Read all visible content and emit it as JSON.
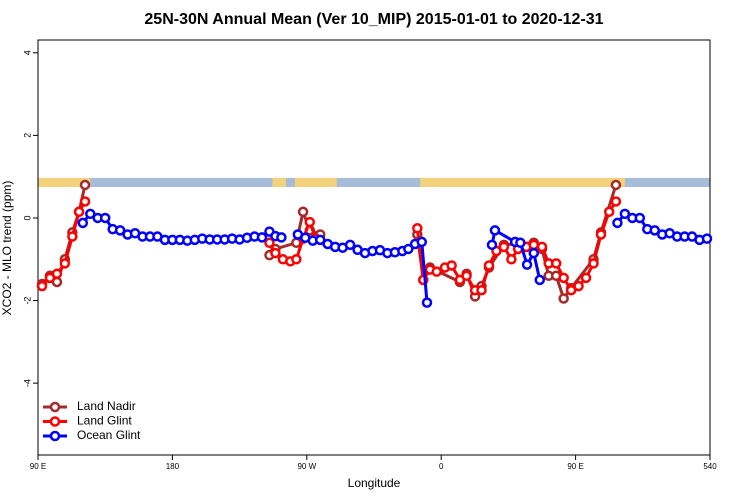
{
  "chart_data": {
    "type": "line",
    "title": "25N-30N Annual Mean (Ver 10_MIP)   2015-01-01 to 2020-12-31",
    "x_label": "Longitude",
    "y_label": "XCO2 - MLO trend (ppm)",
    "xlim": [
      90,
      540
    ],
    "ylim": [
      -5.74,
      4.31
    ],
    "xticks": [
      {
        "value": 90,
        "label": "90 E"
      },
      180,
      {
        "value": 270,
        "label": "90 W"
      },
      {
        "value": 360,
        "label": "0"
      },
      {
        "value": 450,
        "label": "90 E"
      },
      540
    ],
    "yticks": [
      4,
      2,
      0,
      -2,
      -4
    ],
    "grid": false,
    "legend": "bottomleft",
    "strip": {
      "ylim": [
        0.75,
        0.97
      ],
      "land_color": "#f2d27a",
      "ocean_color": "#a6bcd8",
      "land": [
        [
          90,
          125
        ],
        [
          247,
          256
        ],
        [
          262,
          290
        ],
        [
          346,
          483
        ]
      ]
    },
    "series": [
      {
        "name": "Land Nadir",
        "color": "#a52a2a",
        "x": [
          92.7,
          98,
          102.7,
          108,
          113,
          117.5,
          121.5,
          null,
          245,
          249,
          263,
          267.5,
          272,
          279,
          null,
          344,
          348,
          352.5,
          372.5,
          377,
          382.7,
          387,
          392,
          402,
          422,
          427.5,
          432,
          437,
          442,
          447,
          462,
          467,
          477
        ],
        "values": [
          -1.6,
          -1.4,
          -1.55,
          -1.0,
          -0.35,
          0.15,
          0.8,
          null,
          -0.9,
          -0.75,
          -0.6,
          0.15,
          -0.3,
          -0.4,
          null,
          -0.4,
          -1.5,
          -1.2,
          -1.55,
          -1.35,
          -1.9,
          -1.65,
          -1.2,
          -0.65,
          -0.6,
          -0.75,
          -1.4,
          -1.4,
          -1.95,
          -1.7,
          -1.0,
          -0.35,
          0.8
        ]
      },
      {
        "name": "Land Glint",
        "color": "#ff0000",
        "x": [
          92.7,
          98,
          102.7,
          108,
          113,
          117.5,
          121.5,
          null,
          245,
          249,
          254,
          259,
          263,
          267.5,
          272,
          276,
          null,
          344,
          348,
          352.5,
          357,
          362.5,
          367,
          372.5,
          377,
          382.7,
          387,
          392,
          397,
          402,
          407,
          411.5,
          417,
          422,
          427.5,
          432,
          437,
          442,
          447,
          452,
          457,
          462,
          467,
          472.5,
          477
        ],
        "values": [
          -1.65,
          -1.45,
          -1.35,
          -1.1,
          -0.45,
          0.15,
          0.4,
          null,
          -0.6,
          -0.85,
          -1.0,
          -1.05,
          -1.0,
          -0.5,
          -0.1,
          -0.5,
          null,
          -0.25,
          -1.5,
          -1.25,
          -1.3,
          -1.2,
          -1.15,
          -1.5,
          -1.4,
          -1.75,
          -1.75,
          -1.15,
          -0.8,
          -0.7,
          -1.0,
          -0.75,
          -0.7,
          -0.65,
          -0.7,
          -1.1,
          -1.1,
          -1.45,
          -1.75,
          -1.65,
          -1.45,
          -1.1,
          -0.4,
          0.15,
          0.4
        ]
      },
      {
        "name": "Ocean Glint",
        "color": "#0000ff",
        "x": [
          120,
          125,
          130,
          135,
          140,
          145,
          150,
          155,
          160,
          165,
          170,
          175,
          180,
          185,
          190,
          195,
          200,
          205,
          210,
          215,
          220,
          225,
          230,
          235,
          240,
          245,
          249,
          253,
          null,
          264,
          269,
          274,
          279,
          284,
          289,
          294,
          299,
          304,
          309,
          314,
          319,
          324,
          329,
          334,
          338,
          342.5,
          347,
          350.5,
          null,
          394,
          396,
          409.5,
          413,
          417.5,
          422,
          426,
          null,
          478,
          483,
          488,
          493,
          498,
          503,
          508,
          513,
          518,
          523,
          528,
          533,
          538
        ],
        "values": [
          -0.12,
          0.1,
          0,
          0,
          -0.27,
          -0.3,
          -0.4,
          -0.37,
          -0.45,
          -0.45,
          -0.45,
          -0.53,
          -0.53,
          -0.53,
          -0.55,
          -0.53,
          -0.5,
          -0.52,
          -0.52,
          -0.52,
          -0.5,
          -0.52,
          -0.48,
          -0.45,
          -0.47,
          -0.33,
          -0.44,
          -0.47,
          null,
          -0.4,
          -0.48,
          -0.55,
          -0.53,
          -0.63,
          -0.7,
          -0.72,
          -0.65,
          -0.77,
          -0.85,
          -0.8,
          -0.78,
          -0.85,
          -0.83,
          -0.8,
          -0.75,
          -0.63,
          -0.58,
          -2.05,
          null,
          -0.65,
          -0.3,
          -0.58,
          -0.6,
          -1.13,
          -0.85,
          -1.5,
          null,
          -0.12,
          0.1,
          0,
          0,
          -0.27,
          -0.3,
          -0.4,
          -0.37,
          -0.45,
          -0.45,
          -0.45,
          -0.53,
          -0.5
        ]
      }
    ]
  }
}
